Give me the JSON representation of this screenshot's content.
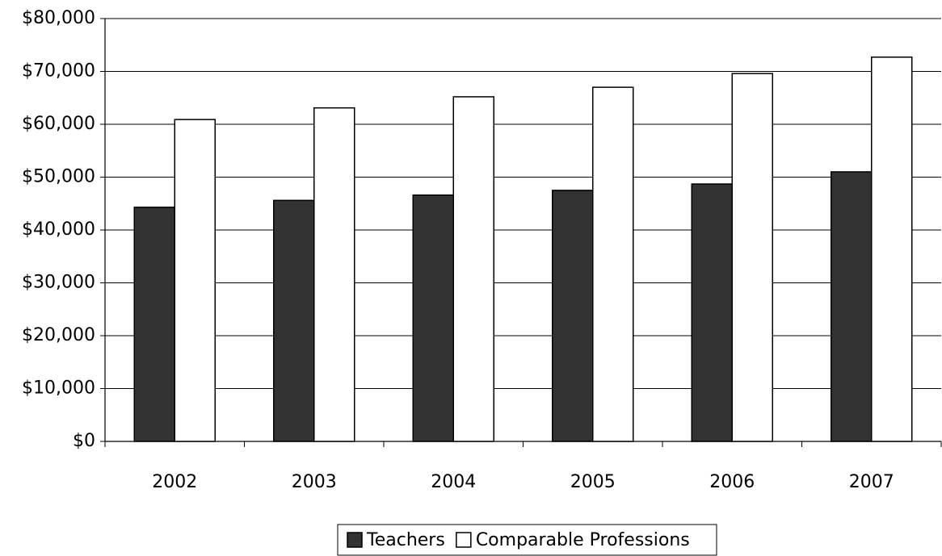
{
  "chart_data": {
    "type": "bar",
    "categories": [
      "2002",
      "2003",
      "2004",
      "2005",
      "2006",
      "2007"
    ],
    "series": [
      {
        "name": "Teachers",
        "color": "#333333",
        "values": [
          44300,
          45600,
          46600,
          47500,
          48700,
          51000
        ]
      },
      {
        "name": "Comparable Professions",
        "color": "#ffffff",
        "values": [
          60900,
          63100,
          65200,
          67000,
          69600,
          72700
        ]
      }
    ],
    "ylim": [
      0,
      80000
    ],
    "yticks": [
      {
        "value": 0,
        "label": "$0"
      },
      {
        "value": 10000,
        "label": "$10,000"
      },
      {
        "value": 20000,
        "label": "$20,000"
      },
      {
        "value": 30000,
        "label": "$30,000"
      },
      {
        "value": 40000,
        "label": "$40,000"
      },
      {
        "value": 50000,
        "label": "$50,000"
      },
      {
        "value": 60000,
        "label": "$60,000"
      },
      {
        "value": 70000,
        "label": "$70,000"
      },
      {
        "value": 80000,
        "label": "$80,000"
      }
    ],
    "grid": true
  }
}
